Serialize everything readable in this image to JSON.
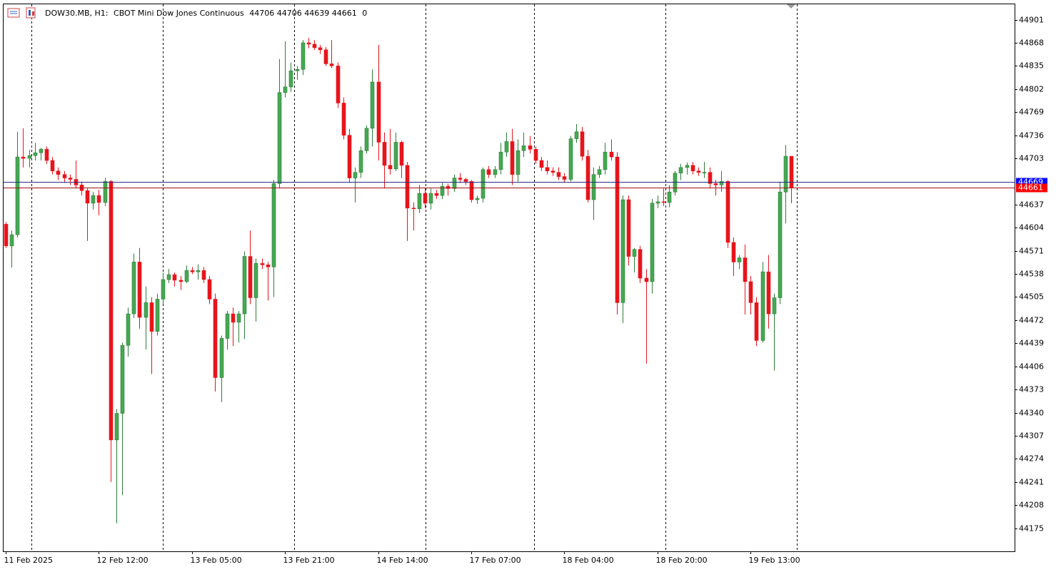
{
  "chart_data": {
    "type": "candlestick",
    "symbol": "DOW30.MB, H1:",
    "description": "CBOT Mini Dow Jones Continuous",
    "tick_volume": 0,
    "ask": 44669,
    "ask_color": "#0000ff",
    "bid_color": "#ff0000",
    "up_color": "#45a852",
    "down_color": "#e8141c",
    "ylim": [
      44142,
      44924
    ],
    "yticks": [
      44901,
      44868,
      44835,
      44802,
      44769,
      44736,
      44703,
      44637,
      44604,
      44571,
      44538,
      44505,
      44472,
      44439,
      44406,
      44373,
      44340,
      44307,
      44274,
      44241,
      44208,
      44175
    ],
    "categories": [
      "11 Feb 2025",
      null,
      null,
      null,
      null,
      null,
      null,
      null,
      null,
      null,
      null,
      null,
      null,
      null,
      null,
      null,
      "12 Feb 12:00",
      null,
      null,
      null,
      null,
      null,
      null,
      null,
      null,
      null,
      null,
      null,
      null,
      null,
      null,
      null,
      "13 Feb 05:00",
      null,
      null,
      null,
      null,
      null,
      null,
      null,
      null,
      null,
      null,
      null,
      null,
      null,
      null,
      null,
      "13 Feb 21:00",
      null,
      null,
      null,
      null,
      null,
      null,
      null,
      null,
      null,
      null,
      null,
      null,
      null,
      null,
      null,
      "14 Feb 14:00",
      null,
      null,
      null,
      null,
      null,
      null,
      null,
      null,
      null,
      null,
      null,
      null,
      null,
      null,
      null,
      "17 Feb 07:00",
      null,
      null,
      null,
      null,
      null,
      null,
      null,
      null,
      null,
      null,
      null,
      null,
      null,
      null,
      null,
      "18 Feb 04:00",
      null,
      null,
      null,
      null,
      null,
      null,
      null,
      null,
      null,
      null,
      null,
      null,
      null,
      null,
      null,
      "18 Feb 20:00",
      null,
      null,
      null,
      null,
      null,
      null,
      null,
      null,
      null,
      null,
      null,
      null,
      null,
      null,
      null,
      "19 Feb 13:00",
      null,
      null,
      null,
      null,
      null,
      null,
      null
    ],
    "open": [
      44609,
      44578,
      44594,
      44705,
      44703,
      44707,
      44711,
      44716,
      44700,
      44685,
      44680,
      44675,
      44673,
      44665,
      44657,
      44639,
      44650,
      44640,
      44670,
      44301,
      44339,
      44436,
      44481,
      44555,
      44476,
      44497,
      44456,
      44502,
      44530,
      44537,
      44529,
      44527,
      44543,
      44541,
      44543,
      44530,
      44502,
      44390,
      44446,
      44481,
      44469,
      44481,
      44563,
      44504,
      44553,
      44551,
      44548,
      44667,
      44797,
      44805,
      44828,
      44830,
      44868,
      44866,
      44861,
      44858,
      44838,
      44835,
      44782,
      44736,
      44675,
      44683,
      44714,
      44746,
      44812,
      44726,
      44693,
      44688,
      44726,
      44693,
      44632,
      44631,
      44653,
      44639,
      44653,
      44650,
      44663,
      44660,
      44675,
      44673,
      44670,
      44644,
      44646,
      44687,
      44680,
      44687,
      44712,
      44727,
      44680,
      44714,
      44721,
      44716,
      44700,
      44690,
      44685,
      44683,
      44677,
      44673,
      44731,
      44741,
      44706,
      44644,
      44680,
      44687,
      44712,
      44705,
      44497,
      44644,
      44563,
      44573,
      44532,
      44527,
      44639,
      44641,
      44640,
      44655,
      44682,
      44690,
      44693,
      44685,
      44683,
      44683,
      44667,
      44665,
      44670,
      44583,
      44555,
      44561,
      44527,
      44497,
      44443,
      44541,
      44481,
      44504,
      44655,
      44706
    ],
    "high": [
      44612,
      44600,
      44741,
      44746,
      44715,
      44725,
      44718,
      44720,
      44705,
      44690,
      44685,
      44680,
      44700,
      44670,
      44660,
      44655,
      44658,
      44675,
      44672,
      44345,
      44440,
      44490,
      44567,
      44575,
      44520,
      44505,
      44510,
      44540,
      44545,
      44540,
      44535,
      44550,
      44548,
      44552,
      44548,
      44535,
      44510,
      44450,
      44485,
      44490,
      44485,
      44570,
      44600,
      44560,
      44560,
      44555,
      44672,
      44845,
      44870,
      44840,
      44835,
      44872,
      44875,
      44872,
      44865,
      44862,
      44872,
      44840,
      44790,
      44745,
      44690,
      44720,
      44750,
      44830,
      44865,
      44740,
      44745,
      44740,
      44728,
      44698,
      44640,
      44665,
      44660,
      44660,
      44658,
      44668,
      44667,
      44680,
      44682,
      44675,
      44672,
      44650,
      44690,
      44692,
      44692,
      44725,
      44740,
      44745,
      44730,
      44740,
      44735,
      44720,
      44705,
      44700,
      44690,
      44690,
      44682,
      44735,
      44752,
      44748,
      44715,
      44690,
      44692,
      44725,
      44730,
      44712,
      44650,
      44650,
      44575,
      44578,
      44545,
      44645,
      44650,
      44660,
      44665,
      44685,
      44695,
      44697,
      44698,
      44690,
      44698,
      44690,
      44672,
      44685,
      44672,
      44590,
      44565,
      44580,
      44535,
      44505,
      44555,
      44565,
      44510,
      44670,
      44722,
      44706
    ],
    "low": [
      44575,
      44547,
      44590,
      44690,
      44690,
      44700,
      44700,
      44695,
      44680,
      44672,
      44668,
      44665,
      44660,
      44650,
      44585,
      44630,
      44622,
      44635,
      44241,
      44182,
      44222,
      44420,
      44475,
      44460,
      44430,
      44395,
      44450,
      44495,
      44525,
      44520,
      44515,
      44525,
      44538,
      44530,
      44525,
      44495,
      44370,
      44355,
      44430,
      44435,
      44440,
      44445,
      44495,
      44470,
      44545,
      44500,
      44505,
      44660,
      44790,
      44798,
      44815,
      44822,
      44860,
      44858,
      44852,
      44835,
      44832,
      44775,
      44730,
      44668,
      44640,
      44675,
      44710,
      44720,
      44700,
      44660,
      44680,
      44685,
      44675,
      44585,
      44600,
      44625,
      44632,
      44630,
      44645,
      44645,
      44650,
      44655,
      44668,
      44665,
      44640,
      44638,
      44640,
      44675,
      44675,
      44680,
      44705,
      44665,
      44670,
      44705,
      44710,
      44695,
      44685,
      44680,
      44678,
      44672,
      44668,
      44670,
      44725,
      44700,
      44640,
      44615,
      44675,
      44680,
      44700,
      44480,
      44468,
      44550,
      44540,
      44525,
      44410,
      44510,
      44632,
      44635,
      44633,
      44650,
      44672,
      44680,
      44680,
      44678,
      44675,
      44660,
      44650,
      44655,
      44575,
      44535,
      44545,
      44480,
      44480,
      44435,
      44440,
      44460,
      44400,
      44495,
      44610,
      44639
    ],
    "close": [
      44578,
      44594,
      44705,
      44703,
      44707,
      44711,
      44716,
      44700,
      44685,
      44680,
      44675,
      44673,
      44665,
      44657,
      44639,
      44650,
      44640,
      44670,
      44301,
      44339,
      44436,
      44481,
      44555,
      44476,
      44497,
      44456,
      44502,
      44530,
      44537,
      44529,
      44527,
      44543,
      44541,
      44543,
      44530,
      44502,
      44390,
      44446,
      44481,
      44469,
      44481,
      44563,
      44504,
      44553,
      44551,
      44548,
      44667,
      44797,
      44805,
      44828,
      44830,
      44868,
      44866,
      44861,
      44858,
      44838,
      44835,
      44782,
      44736,
      44675,
      44683,
      44714,
      44746,
      44812,
      44726,
      44693,
      44688,
      44726,
      44693,
      44632,
      44631,
      44653,
      44639,
      44653,
      44650,
      44663,
      44660,
      44675,
      44673,
      44670,
      44644,
      44646,
      44687,
      44680,
      44687,
      44712,
      44727,
      44680,
      44714,
      44721,
      44716,
      44700,
      44690,
      44685,
      44683,
      44677,
      44673,
      44731,
      44741,
      44706,
      44644,
      44680,
      44687,
      44712,
      44705,
      44497,
      44644,
      44563,
      44573,
      44532,
      44527,
      44639,
      44641,
      44640,
      44655,
      44682,
      44690,
      44693,
      44685,
      44683,
      44683,
      44667,
      44665,
      44670,
      44583,
      44555,
      44561,
      44527,
      44497,
      44443,
      44541,
      44481,
      44504,
      44655,
      44706,
      44661
    ]
  }
}
